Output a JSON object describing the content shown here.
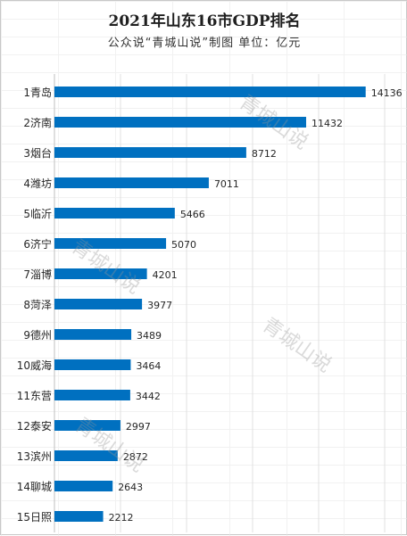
{
  "chart_data": {
    "type": "bar",
    "orientation": "horizontal",
    "title": "2021年山东16市GDP排名",
    "subtitle": "公众说“青城山说”制图    单位：亿元",
    "categories": [
      "1青岛",
      "2济南",
      "3烟台",
      "4潍坊",
      "5临沂",
      "6济宁",
      "7淄博",
      "8菏泽",
      "9德州",
      "10威海",
      "11东营",
      "12泰安",
      "13滨州",
      "14聊城",
      "15日照"
    ],
    "values": [
      14136,
      11432,
      8712,
      7011,
      5466,
      5070,
      4201,
      3977,
      3489,
      3464,
      3442,
      2997,
      2872,
      2643,
      2212
    ],
    "xlim": [
      0,
      15000
    ],
    "grid": true,
    "bar_color": "#0070c0"
  },
  "watermarks": [
    "青城山说",
    "青城山说",
    "青城山说",
    "青城山说"
  ]
}
